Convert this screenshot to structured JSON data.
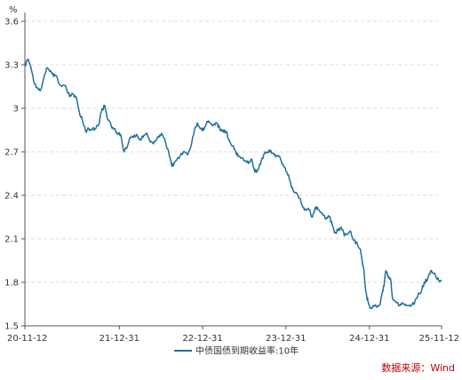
{
  "chart_data": {
    "type": "line",
    "unit": "%",
    "ylim": [
      1.5,
      3.6
    ],
    "y_ticks": [
      1.5,
      1.8,
      2.1,
      2.4,
      2.7,
      3,
      3.3,
      3.6
    ],
    "x_range": [
      "2020-11-12",
      "2025-11-12"
    ],
    "x_ticks": [
      {
        "date": "2020-11-12",
        "label": "20-11-12"
      },
      {
        "date": "2021-12-31",
        "label": "21-12-31"
      },
      {
        "date": "2022-12-31",
        "label": "22-12-31"
      },
      {
        "date": "2023-12-31",
        "label": "23-12-31"
      },
      {
        "date": "2024-12-31",
        "label": "24-12-31"
      },
      {
        "date": "2025-11-12",
        "label": "25-11-12"
      }
    ],
    "grid": "horizontal dashed",
    "legend_position": "bottom-center",
    "series": [
      {
        "name": "中债国债到期收益率:10年",
        "color": "#1f6f9c",
        "points": [
          [
            "2020-11-12",
            3.29
          ],
          [
            "2020-11-26",
            3.34
          ],
          [
            "2020-12-10",
            3.27
          ],
          [
            "2020-12-24",
            3.17
          ],
          [
            "2021-01-07",
            3.14
          ],
          [
            "2021-01-21",
            3.13
          ],
          [
            "2021-02-04",
            3.22
          ],
          [
            "2021-02-18",
            3.28
          ],
          [
            "2021-03-04",
            3.26
          ],
          [
            "2021-03-18",
            3.22
          ],
          [
            "2021-04-01",
            3.22
          ],
          [
            "2021-04-15",
            3.16
          ],
          [
            "2021-04-29",
            3.16
          ],
          [
            "2021-05-13",
            3.14
          ],
          [
            "2021-05-27",
            3.08
          ],
          [
            "2021-06-10",
            3.1
          ],
          [
            "2021-06-24",
            3.08
          ],
          [
            "2021-07-08",
            2.98
          ],
          [
            "2021-07-22",
            2.92
          ],
          [
            "2021-08-05",
            2.84
          ],
          [
            "2021-08-19",
            2.86
          ],
          [
            "2021-09-02",
            2.85
          ],
          [
            "2021-09-16",
            2.86
          ],
          [
            "2021-09-30",
            2.88
          ],
          [
            "2021-10-14",
            2.98
          ],
          [
            "2021-10-28",
            3.02
          ],
          [
            "2021-11-11",
            2.92
          ],
          [
            "2021-11-25",
            2.88
          ],
          [
            "2021-12-09",
            2.86
          ],
          [
            "2021-12-23",
            2.82
          ],
          [
            "2022-01-06",
            2.82
          ],
          [
            "2022-01-20",
            2.7
          ],
          [
            "2022-02-03",
            2.73
          ],
          [
            "2022-02-17",
            2.8
          ],
          [
            "2022-03-03",
            2.8
          ],
          [
            "2022-03-17",
            2.82
          ],
          [
            "2022-03-31",
            2.79
          ],
          [
            "2022-04-14",
            2.8
          ],
          [
            "2022-04-28",
            2.83
          ],
          [
            "2022-05-12",
            2.78
          ],
          [
            "2022-05-26",
            2.76
          ],
          [
            "2022-06-09",
            2.78
          ],
          [
            "2022-06-23",
            2.8
          ],
          [
            "2022-07-07",
            2.82
          ],
          [
            "2022-07-21",
            2.77
          ],
          [
            "2022-08-04",
            2.7
          ],
          [
            "2022-08-18",
            2.6
          ],
          [
            "2022-09-01",
            2.63
          ],
          [
            "2022-09-15",
            2.66
          ],
          [
            "2022-09-29",
            2.69
          ],
          [
            "2022-10-13",
            2.7
          ],
          [
            "2022-10-27",
            2.68
          ],
          [
            "2022-11-10",
            2.74
          ],
          [
            "2022-11-24",
            2.84
          ],
          [
            "2022-12-08",
            2.9
          ],
          [
            "2022-12-22",
            2.86
          ],
          [
            "2023-01-05",
            2.85
          ],
          [
            "2023-01-19",
            2.91
          ],
          [
            "2023-02-02",
            2.9
          ],
          [
            "2023-02-16",
            2.89
          ],
          [
            "2023-03-02",
            2.9
          ],
          [
            "2023-03-16",
            2.86
          ],
          [
            "2023-03-30",
            2.85
          ],
          [
            "2023-04-13",
            2.84
          ],
          [
            "2023-04-27",
            2.78
          ],
          [
            "2023-05-11",
            2.74
          ],
          [
            "2023-05-25",
            2.7
          ],
          [
            "2023-06-08",
            2.67
          ],
          [
            "2023-06-22",
            2.66
          ],
          [
            "2023-07-06",
            2.64
          ],
          [
            "2023-07-20",
            2.62
          ],
          [
            "2023-08-03",
            2.65
          ],
          [
            "2023-08-17",
            2.56
          ],
          [
            "2023-08-31",
            2.58
          ],
          [
            "2023-09-14",
            2.64
          ],
          [
            "2023-09-28",
            2.69
          ],
          [
            "2023-10-12",
            2.7
          ],
          [
            "2023-10-26",
            2.71
          ],
          [
            "2023-11-09",
            2.68
          ],
          [
            "2023-11-23",
            2.67
          ],
          [
            "2023-12-07",
            2.65
          ],
          [
            "2023-12-21",
            2.6
          ],
          [
            "2024-01-04",
            2.56
          ],
          [
            "2024-01-18",
            2.5
          ],
          [
            "2024-02-01",
            2.43
          ],
          [
            "2024-02-15",
            2.42
          ],
          [
            "2024-02-29",
            2.38
          ],
          [
            "2024-03-14",
            2.32
          ],
          [
            "2024-03-28",
            2.3
          ],
          [
            "2024-04-11",
            2.3
          ],
          [
            "2024-04-25",
            2.25
          ],
          [
            "2024-05-09",
            2.32
          ],
          [
            "2024-05-23",
            2.3
          ],
          [
            "2024-06-06",
            2.28
          ],
          [
            "2024-06-20",
            2.24
          ],
          [
            "2024-07-04",
            2.26
          ],
          [
            "2024-07-18",
            2.22
          ],
          [
            "2024-08-01",
            2.14
          ],
          [
            "2024-08-15",
            2.16
          ],
          [
            "2024-08-29",
            2.18
          ],
          [
            "2024-09-12",
            2.12
          ],
          [
            "2024-09-26",
            2.13
          ],
          [
            "2024-10-10",
            2.15
          ],
          [
            "2024-10-24",
            2.09
          ],
          [
            "2024-11-07",
            2.07
          ],
          [
            "2024-11-21",
            2.03
          ],
          [
            "2024-11-28",
            1.96
          ],
          [
            "2024-12-05",
            1.9
          ],
          [
            "2024-12-12",
            1.78
          ],
          [
            "2024-12-19",
            1.7
          ],
          [
            "2024-12-26",
            1.66
          ],
          [
            "2025-01-02",
            1.62
          ],
          [
            "2025-01-16",
            1.64
          ],
          [
            "2025-01-30",
            1.63
          ],
          [
            "2025-02-13",
            1.64
          ],
          [
            "2025-02-27",
            1.74
          ],
          [
            "2025-03-06",
            1.79
          ],
          [
            "2025-03-13",
            1.88
          ],
          [
            "2025-03-20",
            1.86
          ],
          [
            "2025-03-27",
            1.83
          ],
          [
            "2025-04-03",
            1.82
          ],
          [
            "2025-04-10",
            1.7
          ],
          [
            "2025-04-24",
            1.67
          ],
          [
            "2025-05-08",
            1.64
          ],
          [
            "2025-05-22",
            1.66
          ],
          [
            "2025-06-05",
            1.65
          ],
          [
            "2025-06-19",
            1.64
          ],
          [
            "2025-07-03",
            1.64
          ],
          [
            "2025-07-17",
            1.66
          ],
          [
            "2025-07-31",
            1.71
          ],
          [
            "2025-08-14",
            1.73
          ],
          [
            "2025-08-28",
            1.8
          ],
          [
            "2025-09-11",
            1.82
          ],
          [
            "2025-09-25",
            1.88
          ],
          [
            "2025-10-09",
            1.86
          ],
          [
            "2025-10-23",
            1.82
          ],
          [
            "2025-11-06",
            1.81
          ],
          [
            "2025-11-12",
            1.81
          ]
        ]
      }
    ]
  },
  "source_text": "数据来源：Wind"
}
